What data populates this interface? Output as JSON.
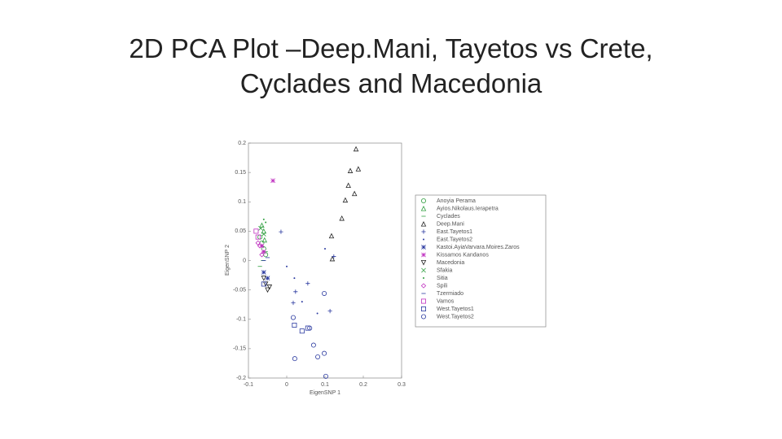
{
  "chart_data": {
    "type": "scatter",
    "title": "2D PCA Plot –Deep.Mani, Tayetos vs Crete, Cyclades and Macedonia",
    "xlabel": "EigenSNP 1",
    "ylabel": "EigenSNP 2",
    "xlim": [
      -0.1,
      0.3
    ],
    "ylim": [
      -0.2,
      0.2
    ],
    "xticks": [
      -0.1,
      0,
      0.1,
      0.2,
      0.3
    ],
    "yticks": [
      -0.2,
      -0.15,
      -0.1,
      -0.05,
      0,
      0.05,
      0.1,
      0.15,
      0.2
    ],
    "legend": "outside-right",
    "series": [
      {
        "name": "Anoyia Perama",
        "color": "#2e9e3e",
        "marker": "circle",
        "x": [
          -0.065,
          -0.06,
          -0.07,
          -0.055
        ],
        "values": [
          0.03,
          0.02,
          0.04,
          0.01
        ]
      },
      {
        "name": "Ayios.Nikolaus.Ierapetra",
        "color": "#2e9e3e",
        "marker": "triangle",
        "x": [
          -0.06,
          -0.065,
          -0.058
        ],
        "values": [
          0.05,
          0.06,
          0.035
        ]
      },
      {
        "name": "Cyclades",
        "color": "#2e9e3e",
        "marker": "dash",
        "x": [
          -0.062,
          -0.055,
          -0.07
        ],
        "values": [
          0.0,
          0.015,
          -0.01
        ]
      },
      {
        "name": "Deep.Mani",
        "color": "#222222",
        "marker": "triangle",
        "x": [
          0.181,
          0.166,
          0.187,
          0.161,
          0.153,
          0.144,
          0.117,
          0.119,
          0.177
        ],
        "values": [
          0.19,
          0.153,
          0.156,
          0.128,
          0.103,
          0.072,
          0.042,
          0.003,
          0.114
        ]
      },
      {
        "name": "East.Tayetos1",
        "color": "#2b3aa0",
        "marker": "plus",
        "x": [
          0.055,
          0.023,
          0.113,
          0.123,
          -0.015,
          0.017
        ],
        "values": [
          -0.039,
          -0.053,
          -0.086,
          0.007,
          0.049,
          -0.072
        ]
      },
      {
        "name": "East.Tayetos2",
        "color": "#2b3aa0",
        "marker": "dot",
        "x": [
          0.0,
          0.02,
          0.04,
          0.08,
          0.1
        ],
        "values": [
          -0.01,
          -0.03,
          -0.07,
          -0.09,
          0.02
        ]
      },
      {
        "name": "Kastoi.AyiaVarvara.Moires.Zaros",
        "color": "#2b3aa0",
        "marker": "star",
        "x": [
          -0.06,
          -0.05
        ],
        "values": [
          -0.02,
          -0.03
        ]
      },
      {
        "name": "Kissamos Kandanos",
        "color": "#c030c0",
        "marker": "star",
        "x": [
          -0.036,
          -0.065,
          -0.06
        ],
        "values": [
          0.136,
          0.025,
          0.015
        ]
      },
      {
        "name": "Macedonia",
        "color": "#222222",
        "marker": "tridown",
        "x": [
          -0.055,
          -0.05,
          -0.06,
          -0.045
        ],
        "values": [
          -0.04,
          -0.05,
          -0.03,
          -0.045
        ]
      },
      {
        "name": "Sfakia",
        "color": "#2e9e3e",
        "marker": "cross",
        "x": [
          -0.06,
          -0.068
        ],
        "values": [
          0.045,
          0.055
        ]
      },
      {
        "name": "Sitia",
        "color": "#2e9e3e",
        "marker": "dot",
        "x": [
          -0.055,
          -0.06
        ],
        "values": [
          0.065,
          0.07
        ]
      },
      {
        "name": "Spili",
        "color": "#c030c0",
        "marker": "diamond",
        "x": [
          -0.075,
          -0.07,
          -0.065
        ],
        "values": [
          0.03,
          0.025,
          0.01
        ]
      },
      {
        "name": "Tzermiado",
        "color": "#2b3aa0",
        "marker": "dash",
        "x": [
          -0.06,
          -0.05
        ],
        "values": [
          0.0,
          0.005
        ]
      },
      {
        "name": "Vamos",
        "color": "#c030c0",
        "marker": "square",
        "x": [
          -0.08,
          -0.075
        ],
        "values": [
          0.05,
          0.04
        ]
      },
      {
        "name": "West.Tayetos1",
        "color": "#2b3aa0",
        "marker": "square",
        "x": [
          -0.06,
          0.04,
          0.055,
          0.02
        ],
        "values": [
          -0.04,
          -0.12,
          -0.115,
          -0.11
        ]
      },
      {
        "name": "West.Tayetos2",
        "color": "#2b3aa0",
        "marker": "circle",
        "x": [
          0.098,
          0.017,
          0.06,
          0.07,
          0.098,
          0.021,
          0.102,
          0.081
        ],
        "values": [
          -0.056,
          -0.097,
          -0.115,
          -0.144,
          -0.158,
          -0.167,
          -0.197,
          -0.164
        ]
      }
    ]
  }
}
